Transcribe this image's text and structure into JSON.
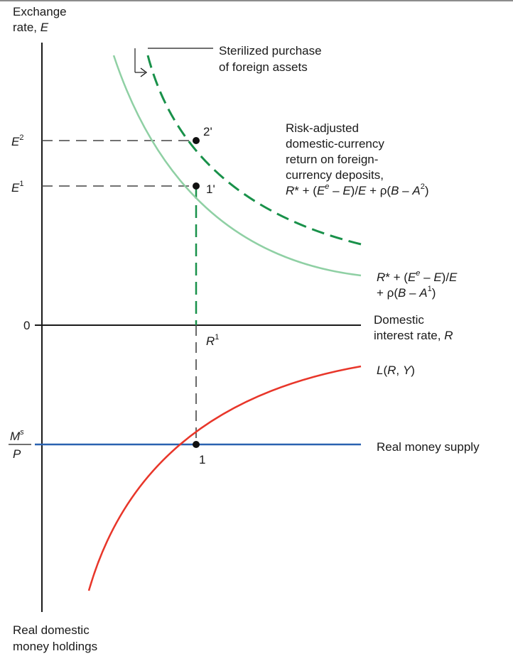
{
  "colors": {
    "axis": "#1a1a1a",
    "risk_curve_initial": "#8fd0a4",
    "risk_curve_shifted": "#19914a",
    "money_demand": "#e8362a",
    "money_supply": "#2a62b0",
    "guide": "#444444"
  },
  "labels": {
    "y_axis_line1": "Exchange",
    "y_axis_line2_prefix": "rate, ",
    "y_axis_line2_var": "E",
    "origin": "0",
    "e2_base": "E",
    "e2_sup": "2",
    "e1_base": "E",
    "e1_sup": "1",
    "ms_num": "M",
    "ms_sup": "s",
    "ms_den": "P",
    "r1_base": "R",
    "r1_sup": "1",
    "point_2prime": "2'",
    "point_1prime": "1'",
    "point_1": "1",
    "sterilized_line1": "Sterilized purchase",
    "sterilized_line2": "of foreign assets",
    "risk_adj_line1": "Risk-adjusted",
    "risk_adj_line2": "domestic-currency",
    "risk_adj_line3": "return on foreign-",
    "risk_adj_line4": "currency deposits,",
    "formula2_a": "R",
    "formula2_b": "* + (",
    "formula2_c": "E",
    "formula2_d": "e",
    "formula2_e": " – ",
    "formula2_f": "E",
    "formula2_g": ")/",
    "formula2_h": "E",
    "formula2_i": " + ρ(",
    "formula2_j": "B",
    "formula2_k": " – ",
    "formula2_l": "A",
    "formula2_m": "2",
    "formula2_n": ")",
    "formula1_a": "R",
    "formula1_b": "* + (",
    "formula1_c": "E",
    "formula1_d": "e",
    "formula1_e": " – ",
    "formula1_f": "E",
    "formula1_g": ")/",
    "formula1_h": "E",
    "formula1_line2_a": "+ ρ(",
    "formula1_line2_b": "B",
    "formula1_line2_c": " – ",
    "formula1_line2_d": "A",
    "formula1_line2_e": "1",
    "formula1_line2_f": ")",
    "domestic_rate_line1": "Domestic",
    "domestic_rate_line2_prefix": "interest rate, ",
    "domestic_rate_line2_var": "R",
    "money_demand_a": "L",
    "money_demand_b": "(",
    "money_demand_c": "R",
    "money_demand_d": ", ",
    "money_demand_e": "Y",
    "money_demand_f": ")",
    "money_supply": "Real money supply",
    "x_bottom_line1": "Real domestic",
    "x_bottom_line2": "money holdings"
  }
}
